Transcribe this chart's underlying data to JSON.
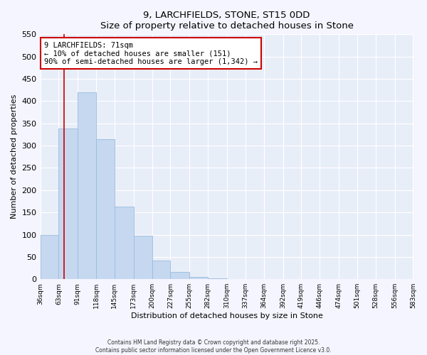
{
  "title": "9, LARCHFIELDS, STONE, ST15 0DD",
  "subtitle": "Size of property relative to detached houses in Stone",
  "xlabel": "Distribution of detached houses by size in Stone",
  "ylabel": "Number of detached properties",
  "bar_color": "#c5d8f0",
  "bar_edge_color": "#9abcde",
  "background_color": "#e8eef8",
  "grid_color": "#ffffff",
  "bin_edges": [
    36,
    63,
    91,
    118,
    145,
    173,
    200,
    227,
    255,
    282,
    310,
    337,
    364,
    392,
    419,
    446,
    474,
    501,
    528,
    556,
    583
  ],
  "bar_heights": [
    100,
    338,
    420,
    315,
    163,
    98,
    42,
    16,
    5,
    2,
    0,
    0,
    0,
    0,
    0,
    0,
    0,
    0,
    0,
    1
  ],
  "tick_labels": [
    "36sqm",
    "63sqm",
    "91sqm",
    "118sqm",
    "145sqm",
    "173sqm",
    "200sqm",
    "227sqm",
    "255sqm",
    "282sqm",
    "310sqm",
    "337sqm",
    "364sqm",
    "392sqm",
    "419sqm",
    "446sqm",
    "474sqm",
    "501sqm",
    "528sqm",
    "556sqm",
    "583sqm"
  ],
  "ylim": [
    0,
    550
  ],
  "yticks": [
    0,
    50,
    100,
    150,
    200,
    250,
    300,
    350,
    400,
    450,
    500,
    550
  ],
  "property_line_x": 71,
  "property_line_color": "#cc0000",
  "annotation_title": "9 LARCHFIELDS: 71sqm",
  "annotation_line1": "← 10% of detached houses are smaller (151)",
  "annotation_line2": "90% of semi-detached houses are larger (1,342) →",
  "annotation_box_color": "#ffffff",
  "annotation_box_edge": "#cc0000",
  "footer_line1": "Contains HM Land Registry data © Crown copyright and database right 2025.",
  "footer_line2": "Contains public sector information licensed under the Open Government Licence v3.0."
}
